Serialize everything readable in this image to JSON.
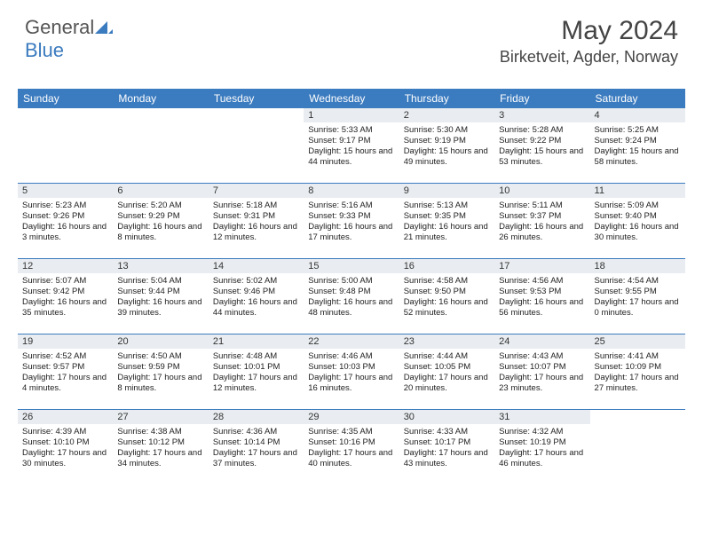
{
  "brand": {
    "part1": "General",
    "part2": "Blue"
  },
  "header": {
    "month": "May 2024",
    "location": "Birketveit, Agder, Norway"
  },
  "style": {
    "accent": "#3b7bbf",
    "daynum_bg": "#e9edf1",
    "text_color": "#222",
    "bg": "#ffffff",
    "header_font_size": 30,
    "loc_font_size": 18,
    "dayhead_font_size": 12,
    "info_font_size": 9.5
  },
  "dayNames": [
    "Sunday",
    "Monday",
    "Tuesday",
    "Wednesday",
    "Thursday",
    "Friday",
    "Saturday"
  ],
  "weeks": [
    [
      {
        "n": "",
        "sr": "",
        "ss": "",
        "dl": ""
      },
      {
        "n": "",
        "sr": "",
        "ss": "",
        "dl": ""
      },
      {
        "n": "",
        "sr": "",
        "ss": "",
        "dl": ""
      },
      {
        "n": "1",
        "sr": "Sunrise: 5:33 AM",
        "ss": "Sunset: 9:17 PM",
        "dl": "Daylight: 15 hours and 44 minutes."
      },
      {
        "n": "2",
        "sr": "Sunrise: 5:30 AM",
        "ss": "Sunset: 9:19 PM",
        "dl": "Daylight: 15 hours and 49 minutes."
      },
      {
        "n": "3",
        "sr": "Sunrise: 5:28 AM",
        "ss": "Sunset: 9:22 PM",
        "dl": "Daylight: 15 hours and 53 minutes."
      },
      {
        "n": "4",
        "sr": "Sunrise: 5:25 AM",
        "ss": "Sunset: 9:24 PM",
        "dl": "Daylight: 15 hours and 58 minutes."
      }
    ],
    [
      {
        "n": "5",
        "sr": "Sunrise: 5:23 AM",
        "ss": "Sunset: 9:26 PM",
        "dl": "Daylight: 16 hours and 3 minutes."
      },
      {
        "n": "6",
        "sr": "Sunrise: 5:20 AM",
        "ss": "Sunset: 9:29 PM",
        "dl": "Daylight: 16 hours and 8 minutes."
      },
      {
        "n": "7",
        "sr": "Sunrise: 5:18 AM",
        "ss": "Sunset: 9:31 PM",
        "dl": "Daylight: 16 hours and 12 minutes."
      },
      {
        "n": "8",
        "sr": "Sunrise: 5:16 AM",
        "ss": "Sunset: 9:33 PM",
        "dl": "Daylight: 16 hours and 17 minutes."
      },
      {
        "n": "9",
        "sr": "Sunrise: 5:13 AM",
        "ss": "Sunset: 9:35 PM",
        "dl": "Daylight: 16 hours and 21 minutes."
      },
      {
        "n": "10",
        "sr": "Sunrise: 5:11 AM",
        "ss": "Sunset: 9:37 PM",
        "dl": "Daylight: 16 hours and 26 minutes."
      },
      {
        "n": "11",
        "sr": "Sunrise: 5:09 AM",
        "ss": "Sunset: 9:40 PM",
        "dl": "Daylight: 16 hours and 30 minutes."
      }
    ],
    [
      {
        "n": "12",
        "sr": "Sunrise: 5:07 AM",
        "ss": "Sunset: 9:42 PM",
        "dl": "Daylight: 16 hours and 35 minutes."
      },
      {
        "n": "13",
        "sr": "Sunrise: 5:04 AM",
        "ss": "Sunset: 9:44 PM",
        "dl": "Daylight: 16 hours and 39 minutes."
      },
      {
        "n": "14",
        "sr": "Sunrise: 5:02 AM",
        "ss": "Sunset: 9:46 PM",
        "dl": "Daylight: 16 hours and 44 minutes."
      },
      {
        "n": "15",
        "sr": "Sunrise: 5:00 AM",
        "ss": "Sunset: 9:48 PM",
        "dl": "Daylight: 16 hours and 48 minutes."
      },
      {
        "n": "16",
        "sr": "Sunrise: 4:58 AM",
        "ss": "Sunset: 9:50 PM",
        "dl": "Daylight: 16 hours and 52 minutes."
      },
      {
        "n": "17",
        "sr": "Sunrise: 4:56 AM",
        "ss": "Sunset: 9:53 PM",
        "dl": "Daylight: 16 hours and 56 minutes."
      },
      {
        "n": "18",
        "sr": "Sunrise: 4:54 AM",
        "ss": "Sunset: 9:55 PM",
        "dl": "Daylight: 17 hours and 0 minutes."
      }
    ],
    [
      {
        "n": "19",
        "sr": "Sunrise: 4:52 AM",
        "ss": "Sunset: 9:57 PM",
        "dl": "Daylight: 17 hours and 4 minutes."
      },
      {
        "n": "20",
        "sr": "Sunrise: 4:50 AM",
        "ss": "Sunset: 9:59 PM",
        "dl": "Daylight: 17 hours and 8 minutes."
      },
      {
        "n": "21",
        "sr": "Sunrise: 4:48 AM",
        "ss": "Sunset: 10:01 PM",
        "dl": "Daylight: 17 hours and 12 minutes."
      },
      {
        "n": "22",
        "sr": "Sunrise: 4:46 AM",
        "ss": "Sunset: 10:03 PM",
        "dl": "Daylight: 17 hours and 16 minutes."
      },
      {
        "n": "23",
        "sr": "Sunrise: 4:44 AM",
        "ss": "Sunset: 10:05 PM",
        "dl": "Daylight: 17 hours and 20 minutes."
      },
      {
        "n": "24",
        "sr": "Sunrise: 4:43 AM",
        "ss": "Sunset: 10:07 PM",
        "dl": "Daylight: 17 hours and 23 minutes."
      },
      {
        "n": "25",
        "sr": "Sunrise: 4:41 AM",
        "ss": "Sunset: 10:09 PM",
        "dl": "Daylight: 17 hours and 27 minutes."
      }
    ],
    [
      {
        "n": "26",
        "sr": "Sunrise: 4:39 AM",
        "ss": "Sunset: 10:10 PM",
        "dl": "Daylight: 17 hours and 30 minutes."
      },
      {
        "n": "27",
        "sr": "Sunrise: 4:38 AM",
        "ss": "Sunset: 10:12 PM",
        "dl": "Daylight: 17 hours and 34 minutes."
      },
      {
        "n": "28",
        "sr": "Sunrise: 4:36 AM",
        "ss": "Sunset: 10:14 PM",
        "dl": "Daylight: 17 hours and 37 minutes."
      },
      {
        "n": "29",
        "sr": "Sunrise: 4:35 AM",
        "ss": "Sunset: 10:16 PM",
        "dl": "Daylight: 17 hours and 40 minutes."
      },
      {
        "n": "30",
        "sr": "Sunrise: 4:33 AM",
        "ss": "Sunset: 10:17 PM",
        "dl": "Daylight: 17 hours and 43 minutes."
      },
      {
        "n": "31",
        "sr": "Sunrise: 4:32 AM",
        "ss": "Sunset: 10:19 PM",
        "dl": "Daylight: 17 hours and 46 minutes."
      },
      {
        "n": "",
        "sr": "",
        "ss": "",
        "dl": ""
      }
    ]
  ]
}
